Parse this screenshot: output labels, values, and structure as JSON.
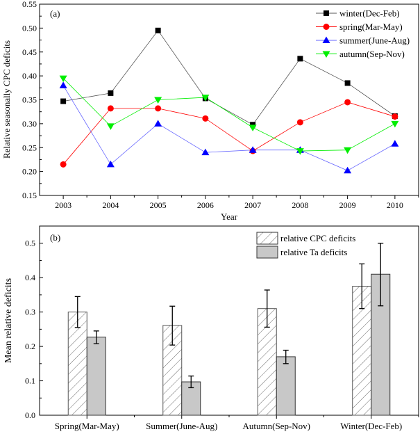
{
  "chart_data": [
    {
      "type": "line",
      "panel_label": "(a)",
      "xlabel": "Year",
      "ylabel": "Relative seasonally CPC deficits",
      "x": [
        2003,
        2004,
        2005,
        2006,
        2007,
        2008,
        2009,
        2010
      ],
      "xlim": [
        2002.5,
        2010.5
      ],
      "ylim": [
        0.15,
        0.55
      ],
      "yticks": [
        "0.15",
        "0.20",
        "0.25",
        "0.30",
        "0.35",
        "0.40",
        "0.45",
        "0.50",
        "0.55"
      ],
      "legend_position": "top-right",
      "series": [
        {
          "name": "winter(Dec-Feb)",
          "marker": "square",
          "color": "#000000",
          "line_color": "#555555",
          "values": [
            0.347,
            0.364,
            0.495,
            0.353,
            0.298,
            0.436,
            0.385,
            0.316
          ]
        },
        {
          "name": "spring(Mar-May)",
          "marker": "circle",
          "color": "#ff0000",
          "line_color": "#ff0000",
          "values": [
            0.215,
            0.332,
            0.332,
            0.311,
            0.243,
            0.303,
            0.345,
            0.315
          ]
        },
        {
          "name": "summer(June-Aug)",
          "marker": "triangle-up",
          "color": "#0000ff",
          "line_color": "#6666ff",
          "values": [
            0.38,
            0.215,
            0.3,
            0.24,
            0.245,
            0.245,
            0.202,
            0.258
          ]
        },
        {
          "name": "autumn(Sep-Nov)",
          "marker": "triangle-down",
          "color": "#00ee00",
          "line_color": "#00ee00",
          "values": [
            0.395,
            0.295,
            0.35,
            0.355,
            0.292,
            0.243,
            0.245,
            0.3
          ]
        }
      ]
    },
    {
      "type": "bar",
      "panel_label": "(b)",
      "xlabel": "",
      "ylabel": "Mean relative deficits",
      "categories": [
        "Spring(Mar-May)",
        "Summer(June-Aug)",
        "Autumn(Sep-Nov)",
        "Winter(Dec-Feb)"
      ],
      "ylim": [
        0.0,
        0.55
      ],
      "yticks": [
        "0.0",
        "0.1",
        "0.2",
        "0.3",
        "0.4",
        "0.5"
      ],
      "legend_position": "top-right",
      "series": [
        {
          "name": "relative CPC deficits",
          "fill": "hatched",
          "values": [
            0.3,
            0.261,
            0.31,
            0.375
          ],
          "err_low": [
            0.255,
            0.204,
            0.256,
            0.31
          ],
          "err_high": [
            0.345,
            0.317,
            0.364,
            0.44
          ]
        },
        {
          "name": "relative Ta deficits",
          "fill": "#c8c8c8",
          "values": [
            0.227,
            0.097,
            0.17,
            0.41
          ],
          "err_low": [
            0.208,
            0.08,
            0.15,
            0.318
          ],
          "err_high": [
            0.245,
            0.114,
            0.189,
            0.5
          ]
        }
      ]
    }
  ]
}
